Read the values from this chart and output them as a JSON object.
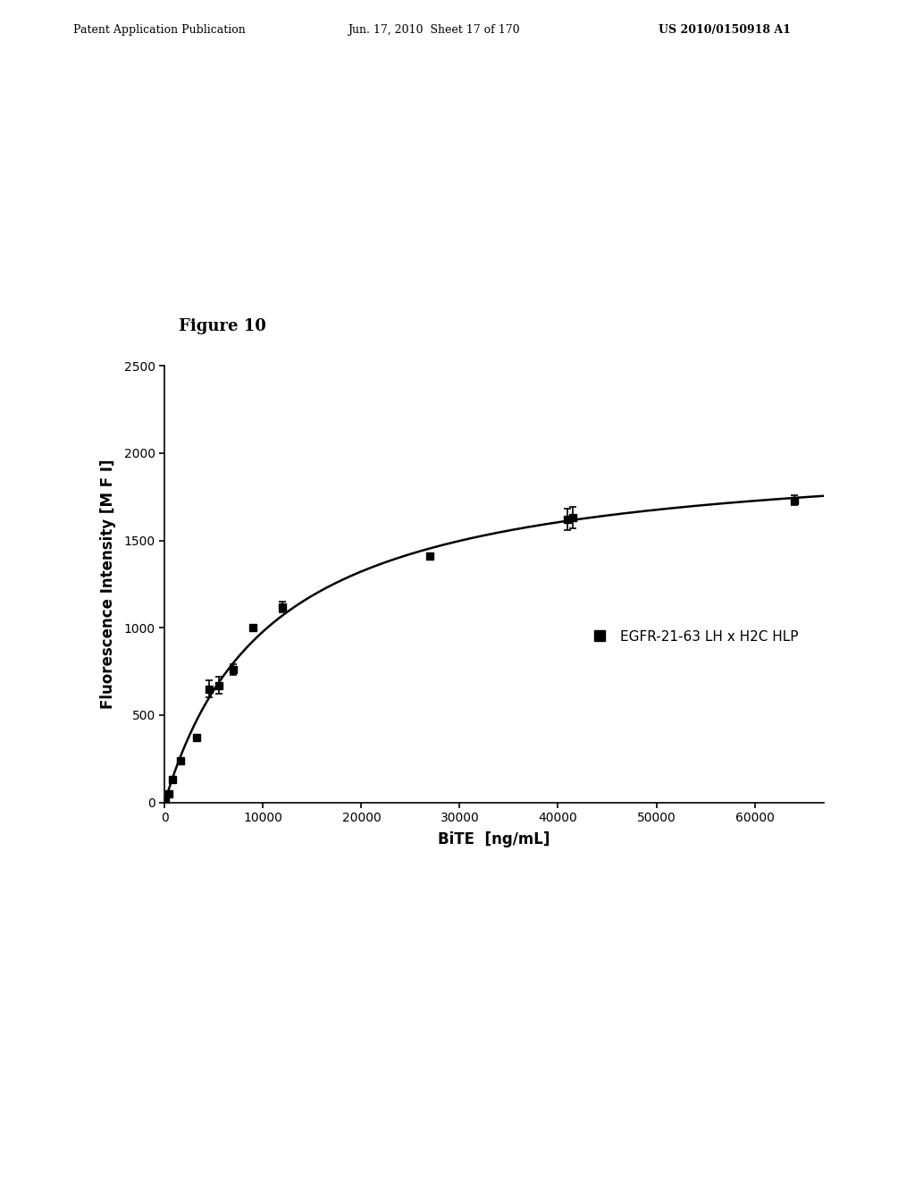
{
  "figure_label": "Figure 10",
  "header_left": "Patent Application Publication",
  "header_center": "Jun. 17, 2010  Sheet 17 of 170",
  "header_right": "US 2010/0150918 A1",
  "xlabel": "BiTE  [ng/mL]",
  "ylabel": "Fluorescence Intensity [M F I]",
  "legend_label": "EGFR-21-63 LH x H2C HLP",
  "xlim": [
    0,
    67000
  ],
  "ylim": [
    0,
    2500
  ],
  "xticks": [
    0,
    10000,
    20000,
    30000,
    40000,
    50000,
    60000
  ],
  "yticks": [
    0,
    500,
    1000,
    1500,
    2000,
    2500
  ],
  "data_x": [
    100,
    400,
    800,
    1600,
    3200,
    4500,
    5500,
    7000,
    9000,
    12000,
    27000,
    41000,
    41500,
    64000
  ],
  "data_y": [
    10,
    50,
    130,
    240,
    370,
    650,
    670,
    760,
    1000,
    1120,
    1410,
    1620,
    1630,
    1730
  ],
  "data_yerr": [
    0,
    0,
    0,
    0,
    0,
    50,
    50,
    30,
    0,
    30,
    0,
    60,
    60,
    30
  ],
  "background_color": "#ffffff",
  "line_color": "#000000",
  "marker_color": "#000000",
  "text_color": "#000000"
}
